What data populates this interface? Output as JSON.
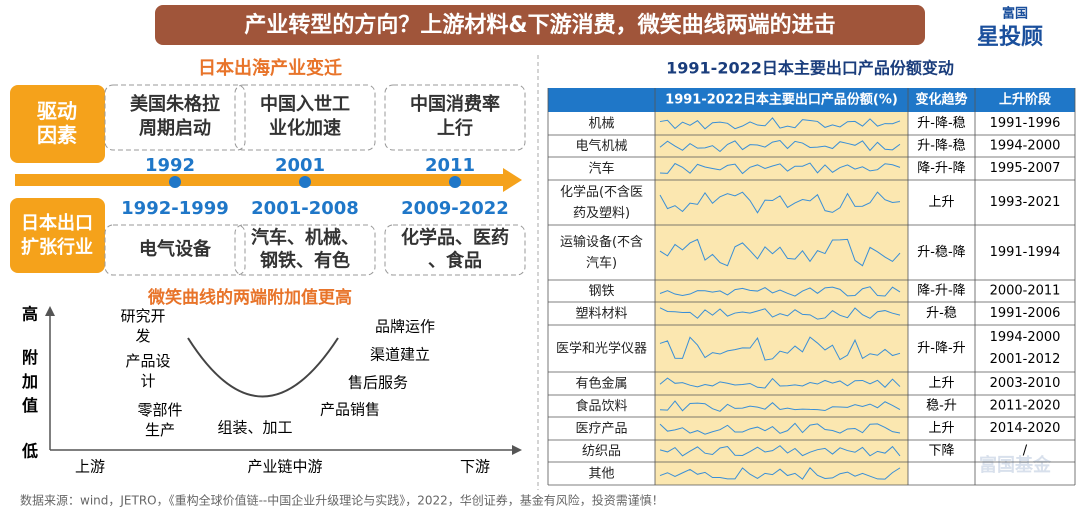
{
  "header": {
    "title": "产业转型的方向？上游材料&下游消费，微笑曲线两端的进击",
    "logo_top": "富国",
    "logo_main": "星投顾"
  },
  "left": {
    "title": "日本出海产业变迁",
    "drivers_label": "驱动因素",
    "industries_label": "日本出口扩张行业",
    "drivers": [
      "美国朱格拉周期启动",
      "中国入世工业化加速",
      "中国消费率上行"
    ],
    "years": [
      "1992",
      "2001",
      "2011"
    ],
    "periods": [
      "1992-1999",
      "2001-2008",
      "2009-2022"
    ],
    "industries": [
      "电气设备",
      "汽车、机械、钢铁、有色",
      "化学品、医药、食品"
    ]
  },
  "smile": {
    "title": "微笑曲线的两端附加值更高",
    "y_high": "高",
    "y_label": "附加值",
    "y_low": "低",
    "x_left": "上游",
    "x_mid": "产业链中游",
    "x_right": "下游",
    "left_items": [
      "研究开发",
      "产品设计",
      "零部件生产"
    ],
    "bottom_item": "组装、加工",
    "right_items": [
      "品牌运作",
      "渠道建立",
      "售后服务",
      "产品销售"
    ]
  },
  "table": {
    "title": "1991-2022日本主要出口产品份额变动",
    "columns": [
      "1991-2022日本主要出口产品份额(%)",
      "变化趋势",
      "上升阶段"
    ],
    "rows": [
      {
        "name": "机械",
        "trend": "升-降-稳",
        "stages": [
          "1991-1996"
        ]
      },
      {
        "name": "电气机械",
        "trend": "升-降-稳",
        "stages": [
          "1994-2000"
        ]
      },
      {
        "name": "汽车",
        "trend": "降-升-降",
        "stages": [
          "1995-2007"
        ]
      },
      {
        "name": "化学品(不含医药及塑料)",
        "trend": "上升",
        "stages": [
          "1993-2021"
        ]
      },
      {
        "name": "运输设备(不含汽车)",
        "trend": "升-稳-降",
        "stages": [
          "1991-1994"
        ]
      },
      {
        "name": "钢铁",
        "trend": "降-升-降",
        "stages": [
          "2000-2011"
        ]
      },
      {
        "name": "塑料材料",
        "trend": "升-稳",
        "stages": [
          "1991-2006"
        ]
      },
      {
        "name": "医学和光学仪器",
        "trend": "升-降-升",
        "stages": [
          "1994-2000",
          "2001-2012"
        ]
      },
      {
        "name": "有色金属",
        "trend": "上升",
        "stages": [
          "2003-2010"
        ]
      },
      {
        "name": "食品饮料",
        "trend": "稳-升",
        "stages": [
          "2011-2020"
        ]
      },
      {
        "name": "医疗产品",
        "trend": "上升",
        "stages": [
          "2014-2020"
        ]
      },
      {
        "name": "纺织品",
        "trend": "下降",
        "stages": [
          "/"
        ]
      },
      {
        "name": "其他"
      }
    ]
  },
  "watermark": "富国基金",
  "footnote": "数据来源：wind，JETRO，《重构全球价值链--中国企业升级理论与实践》，2022，华创证券，基金有风险，投资需谨慎！"
}
